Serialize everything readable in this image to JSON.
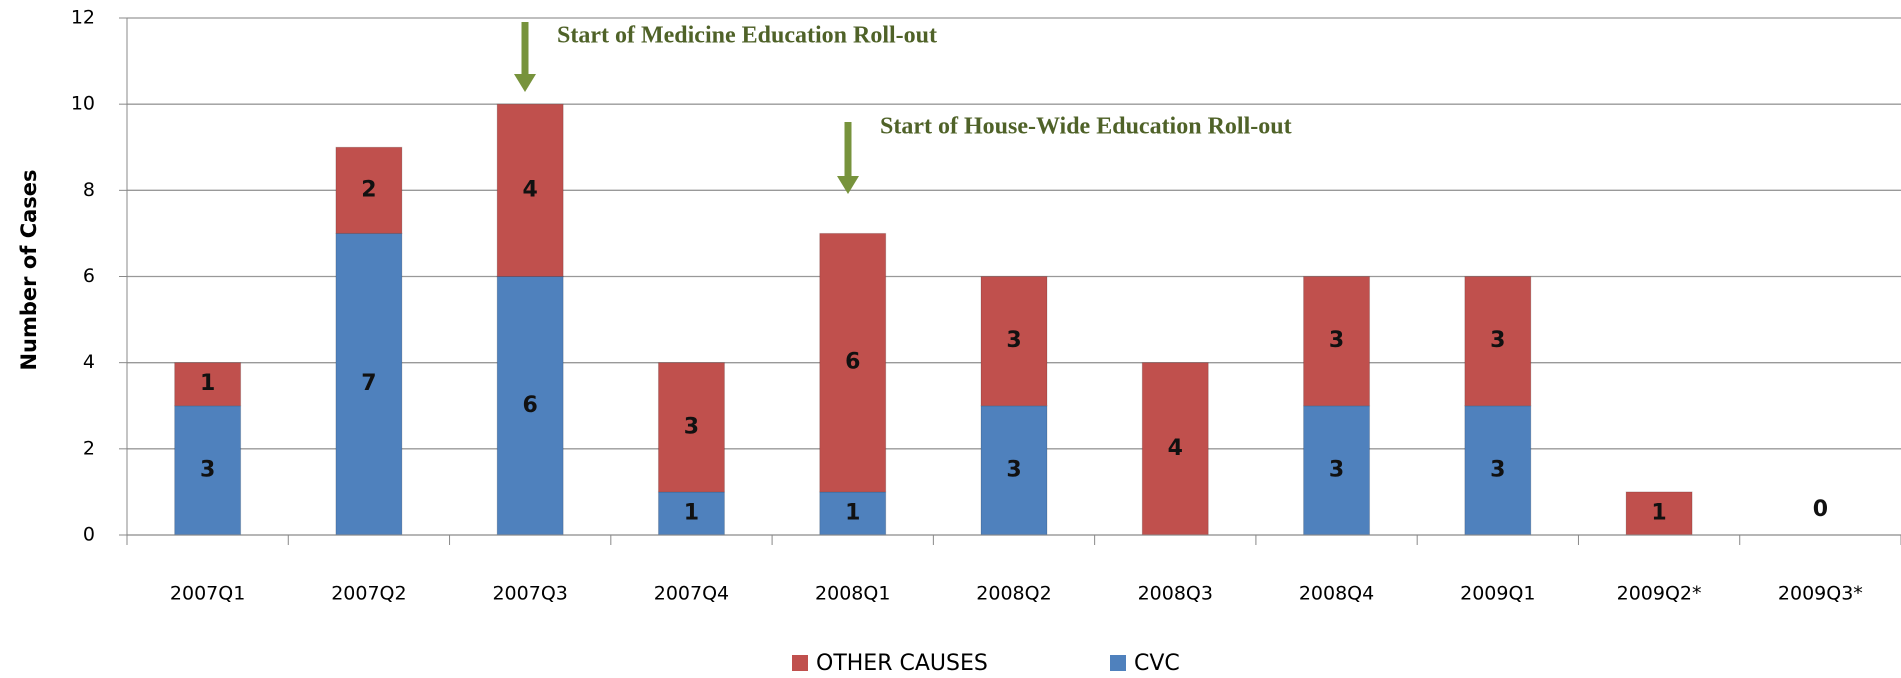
{
  "chart_data": {
    "type": "stacked_bar",
    "y_axis_label": "Number of Cases",
    "categories": [
      "2007Q1",
      "2007Q2",
      "2007Q3",
      "2007Q4",
      "2008Q1",
      "2008Q2",
      "2008Q3",
      "2008Q4",
      "2009Q1",
      "2009Q2*",
      "2009Q3*"
    ],
    "series": [
      {
        "name": "CVC",
        "color": "#4f81bd",
        "values": [
          3,
          7,
          6,
          1,
          1,
          3,
          0,
          3,
          3,
          0,
          0
        ],
        "value_labels": [
          "3",
          "7",
          "6",
          "1",
          "1",
          "3",
          null,
          "3",
          "3",
          null,
          "0"
        ]
      },
      {
        "name": "OTHER CAUSES",
        "color": "#c0504d",
        "values": [
          1,
          2,
          4,
          3,
          6,
          3,
          4,
          3,
          3,
          1,
          0
        ],
        "value_labels": [
          "1",
          "2",
          "4",
          "3",
          "6",
          "3",
          "4",
          "3",
          "3",
          "1",
          null
        ]
      }
    ],
    "annotations": [
      "Start of Medicine Education Roll-out",
      "Start of House-Wide Education Roll-out"
    ],
    "ylim": [
      0,
      12
    ],
    "yticks": [
      0,
      2,
      4,
      6,
      8,
      10,
      12
    ],
    "grid": true,
    "legend": "bottom"
  }
}
